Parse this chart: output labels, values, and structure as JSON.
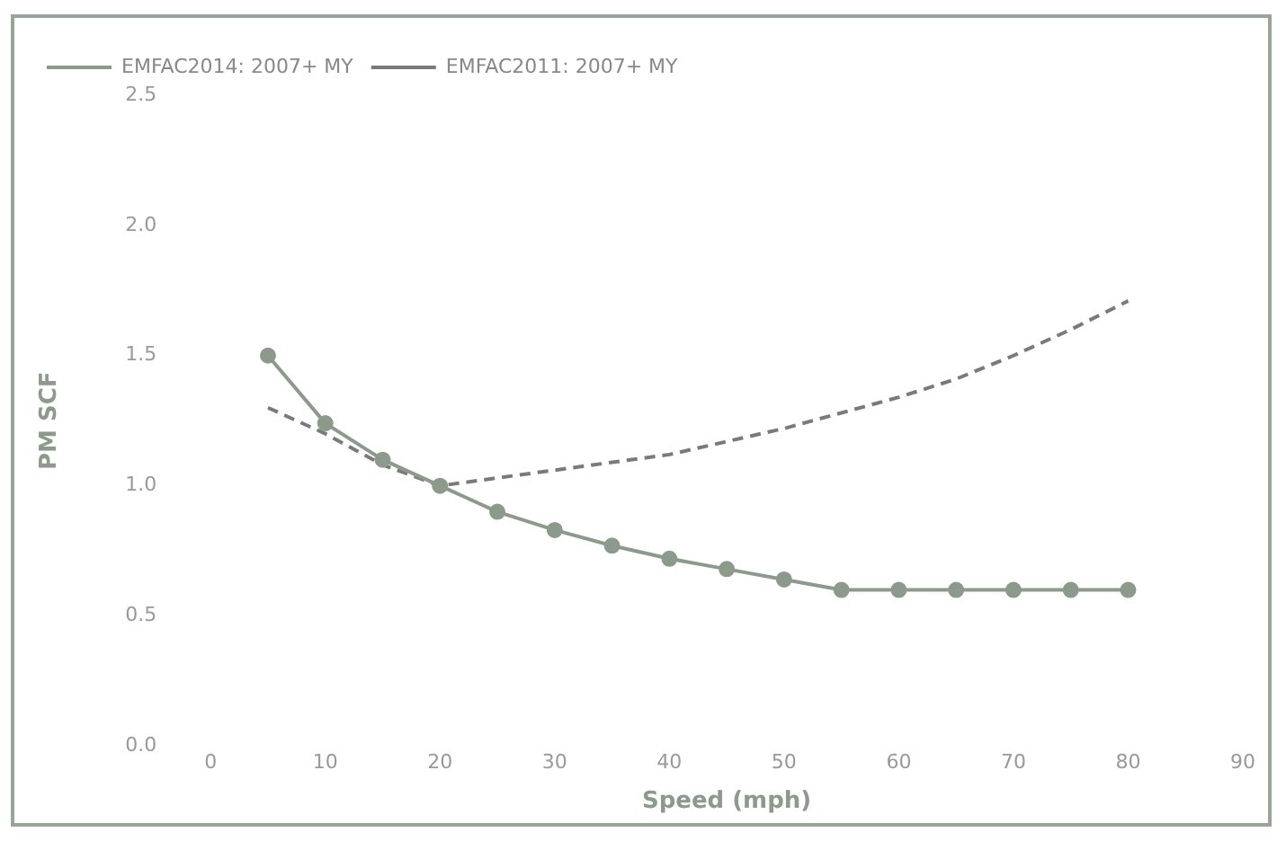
{
  "chart_data": {
    "type": "line",
    "xlabel": "Speed (mph)",
    "ylabel": "PM SCF",
    "xlim": [
      0,
      90
    ],
    "xticks": [
      0,
      10,
      20,
      30,
      40,
      50,
      60,
      70,
      80,
      90
    ],
    "ylim": [
      0,
      2.5
    ],
    "yticks": [
      {
        "value": 0,
        "label": "0.0"
      },
      {
        "value": 0.5,
        "label": "0.5"
      },
      {
        "value": 1,
        "label": "1.0"
      },
      {
        "value": 1.5,
        "label": "1.5"
      },
      {
        "value": 2,
        "label": "2.0"
      },
      {
        "value": 2.5,
        "label": "2.5"
      }
    ],
    "x": [
      5,
      10,
      15,
      20,
      25,
      30,
      35,
      40,
      45,
      50,
      55,
      60,
      65,
      70,
      75,
      80
    ],
    "series": [
      {
        "name": "EMFAC2014: 2007+ MY",
        "color": "#8c9a8c",
        "marker": "circle",
        "line_style": "solid",
        "values": [
          1.5,
          1.24,
          1.1,
          1.0,
          0.9,
          0.83,
          0.77,
          0.72,
          0.68,
          0.64,
          0.6,
          0.6,
          0.6,
          0.6,
          0.6,
          0.6
        ]
      },
      {
        "name": "EMFAC2011: 2007+ MY",
        "color": "#7a7a7a",
        "marker": "none",
        "line_style": "dashed",
        "values": [
          1.3,
          1.2,
          1.08,
          1.0,
          1.03,
          1.06,
          1.09,
          1.12,
          1.17,
          1.22,
          1.28,
          1.34,
          1.41,
          1.5,
          1.6,
          1.71
        ]
      }
    ],
    "grid": false,
    "legend": "top left"
  }
}
